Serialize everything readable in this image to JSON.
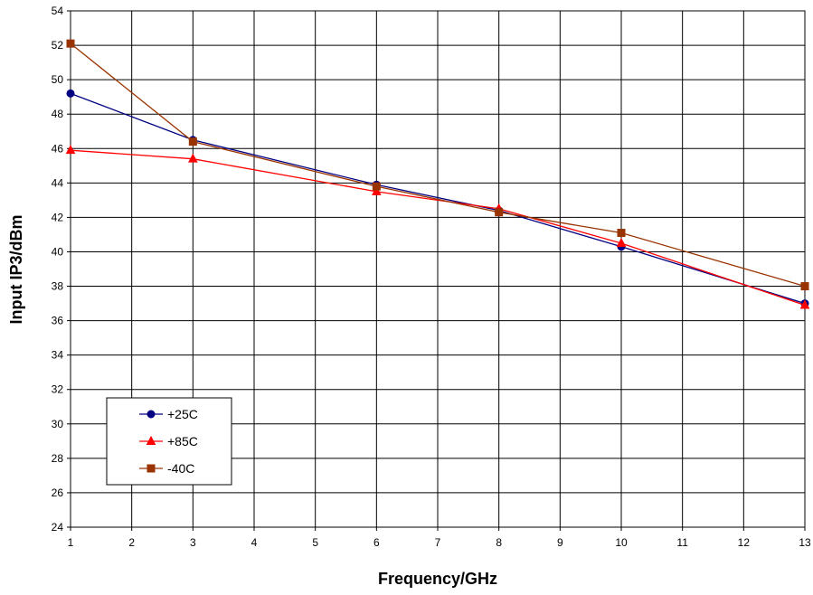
{
  "chart_data": {
    "type": "line",
    "title": "",
    "xlabel": "Frequency/GHz",
    "ylabel": "Input IP3/dBm",
    "x_categories": [
      "1",
      "2",
      "3",
      "4",
      "5",
      "6",
      "7",
      "8",
      "9",
      "10",
      "11",
      "12",
      "13"
    ],
    "y_ticks": [
      "24",
      "26",
      "28",
      "30",
      "32",
      "34",
      "36",
      "38",
      "40",
      "42",
      "44",
      "46",
      "48",
      "50",
      "52",
      "54"
    ],
    "ylim": [
      24,
      54
    ],
    "xlim": [
      1,
      13
    ],
    "grid": true,
    "legend_position": "bottom-left",
    "series": [
      {
        "name": "+25C",
        "color": "#000080",
        "marker": "circle",
        "x": [
          1,
          3,
          6,
          8,
          10,
          13
        ],
        "y": [
          49.2,
          46.5,
          43.9,
          42.4,
          40.3,
          37.0
        ]
      },
      {
        "name": "+85C",
        "color": "#ff0000",
        "marker": "triangle",
        "x": [
          1,
          3,
          6,
          8,
          10,
          13
        ],
        "y": [
          45.9,
          45.4,
          43.5,
          42.5,
          40.5,
          36.9
        ]
      },
      {
        "name": "-40C",
        "color": "#993300",
        "marker": "square",
        "x": [
          1,
          3,
          6,
          8,
          10,
          13
        ],
        "y": [
          52.1,
          46.4,
          43.8,
          42.3,
          41.1,
          38.0
        ]
      }
    ]
  }
}
